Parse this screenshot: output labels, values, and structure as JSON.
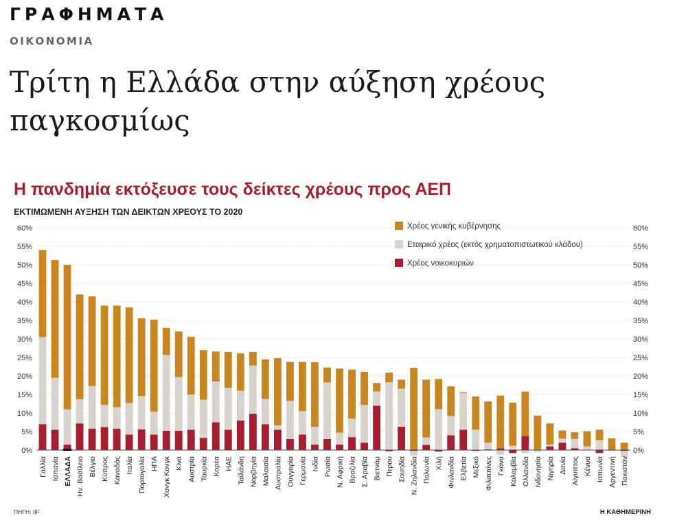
{
  "header": {
    "section": "ΓΡΑΦΗΜΑΤΑ",
    "category": "ΟΙΚΟΝΟΜΙΑ",
    "headline": "Τρίτη η Ελλάδα στην αύξηση χρέους παγκοσμίως"
  },
  "chart_data": {
    "type": "bar",
    "stacked": true,
    "title": "Η πανδημία εκτόξευσε τους δείκτες χρέους προς ΑΕΠ",
    "subtitle": "ΕΚΤΙΜΩΜΕΝΗ ΑΥΞΗΣΗ ΤΩΝ ΔΕΙΚΤΩΝ ΧΡΕΟΥΣ ΤΟ 2020",
    "source": "ΠΗΓΗ: IIF",
    "credit": "Η ΚΑΘΗΜΕΡΙΝΗ",
    "ylim": [
      0,
      60
    ],
    "ytick_labels": [
      "0%",
      "5%",
      "10%",
      "15%",
      "20%",
      "25%",
      "30%",
      "35%",
      "40%",
      "45%",
      "50%",
      "55%",
      "60%"
    ],
    "grid": true,
    "legend_position": "top-right",
    "highlight_category": "ΕΛΛΑΔΑ",
    "categories": [
      "Γαλλία",
      "Ισπανία",
      "ΕΛΛΑΔΑ",
      "Ην. Βασίλειο",
      "Βέλγιο",
      "Κύπρος",
      "Καναδάς",
      "Ιταλία",
      "Πορτογαλία",
      "ΗΠΑ",
      "Χονγκ Κονγκ",
      "Κίνα",
      "Αυστρία",
      "Τουρκία",
      "Κορέα",
      "ΗΑΕ",
      "Ταϊλάνδη",
      "Νορβηγία",
      "Μαλαισία",
      "Αυστραλία",
      "Ουγγαρία",
      "Γερμανία",
      "Ινδία",
      "Ρωσία",
      "Ν. Αφρική",
      "Βραζιλία",
      "Σ. Αραβία",
      "Βιετνάμ",
      "Περού",
      "Σουηδία",
      "Ν. Ζηλανδία",
      "Πολωνία",
      "Χιλή",
      "Φινλανδία",
      "Ελβετία",
      "Μεξικό",
      "Φιλιππίνες",
      "Γκάνα",
      "Κολομβία",
      "Ολλανδία",
      "Ινδονησία",
      "Νιγηρία",
      "Δανία",
      "Αίγυπτος",
      "Κένυα",
      "Ιαπωνία",
      "Αργεντινή",
      "Πακιστάν"
    ],
    "series": [
      {
        "name": "Χρέος νοικοκυριών",
        "color": "#a81e2e",
        "values": [
          7,
          5.5,
          1.5,
          7.2,
          5.8,
          6.2,
          5.8,
          4.2,
          5.6,
          4.2,
          5.2,
          5.2,
          5.5,
          3.3,
          7.5,
          5.5,
          8,
          9.8,
          7,
          5.5,
          3,
          4.2,
          1.5,
          3,
          1.5,
          3.5,
          2,
          12,
          -0.3,
          6.3,
          -0.2,
          1.4,
          -0.4,
          4,
          5.5,
          -0.2,
          0.2,
          0.5,
          -0.8,
          3.8,
          0.1,
          1,
          2,
          0.5,
          0.1,
          -0.8,
          0.1,
          -0.2
        ]
      },
      {
        "name": "Εταιρικό χρέος (εκτός χρηματοπιστωτικού κλάδου)",
        "color": "#d8d2cc",
        "values": [
          23.5,
          14,
          9.5,
          6.5,
          11.5,
          6,
          5.8,
          8.5,
          9,
          6.2,
          20.5,
          14.5,
          9.5,
          10.3,
          11,
          11.3,
          8,
          13,
          6.8,
          1.2,
          10.3,
          6.3,
          4.8,
          15.3,
          3.2,
          5,
          10.2,
          3.8,
          18.3,
          10.3,
          -1.3,
          2,
          11,
          5.2,
          10,
          5.5,
          1.8,
          -1.3,
          1.2,
          -0.8,
          -0.5,
          0.5,
          1.1,
          2.5,
          0.9,
          2.7,
          -0.2,
          -1.8
        ]
      },
      {
        "name": "Χρέος γενικής κυβέρνησης",
        "color": "#c9861f",
        "values": [
          23.5,
          31.8,
          39,
          28.3,
          24.2,
          26.8,
          27.4,
          25.8,
          21,
          24.8,
          7.3,
          12.3,
          15.6,
          13.4,
          8.1,
          9.7,
          10.1,
          3.7,
          10.7,
          18.1,
          10.5,
          13.3,
          17.4,
          4,
          17.3,
          13.2,
          8.9,
          2.3,
          2.6,
          2.4,
          22.2,
          15.6,
          8.2,
          8,
          0.2,
          9,
          11.1,
          14.2,
          11.6,
          12,
          9.2,
          5.7,
          2.2,
          1.8,
          4.1,
          2.8,
          3.1,
          2
        ]
      }
    ]
  }
}
